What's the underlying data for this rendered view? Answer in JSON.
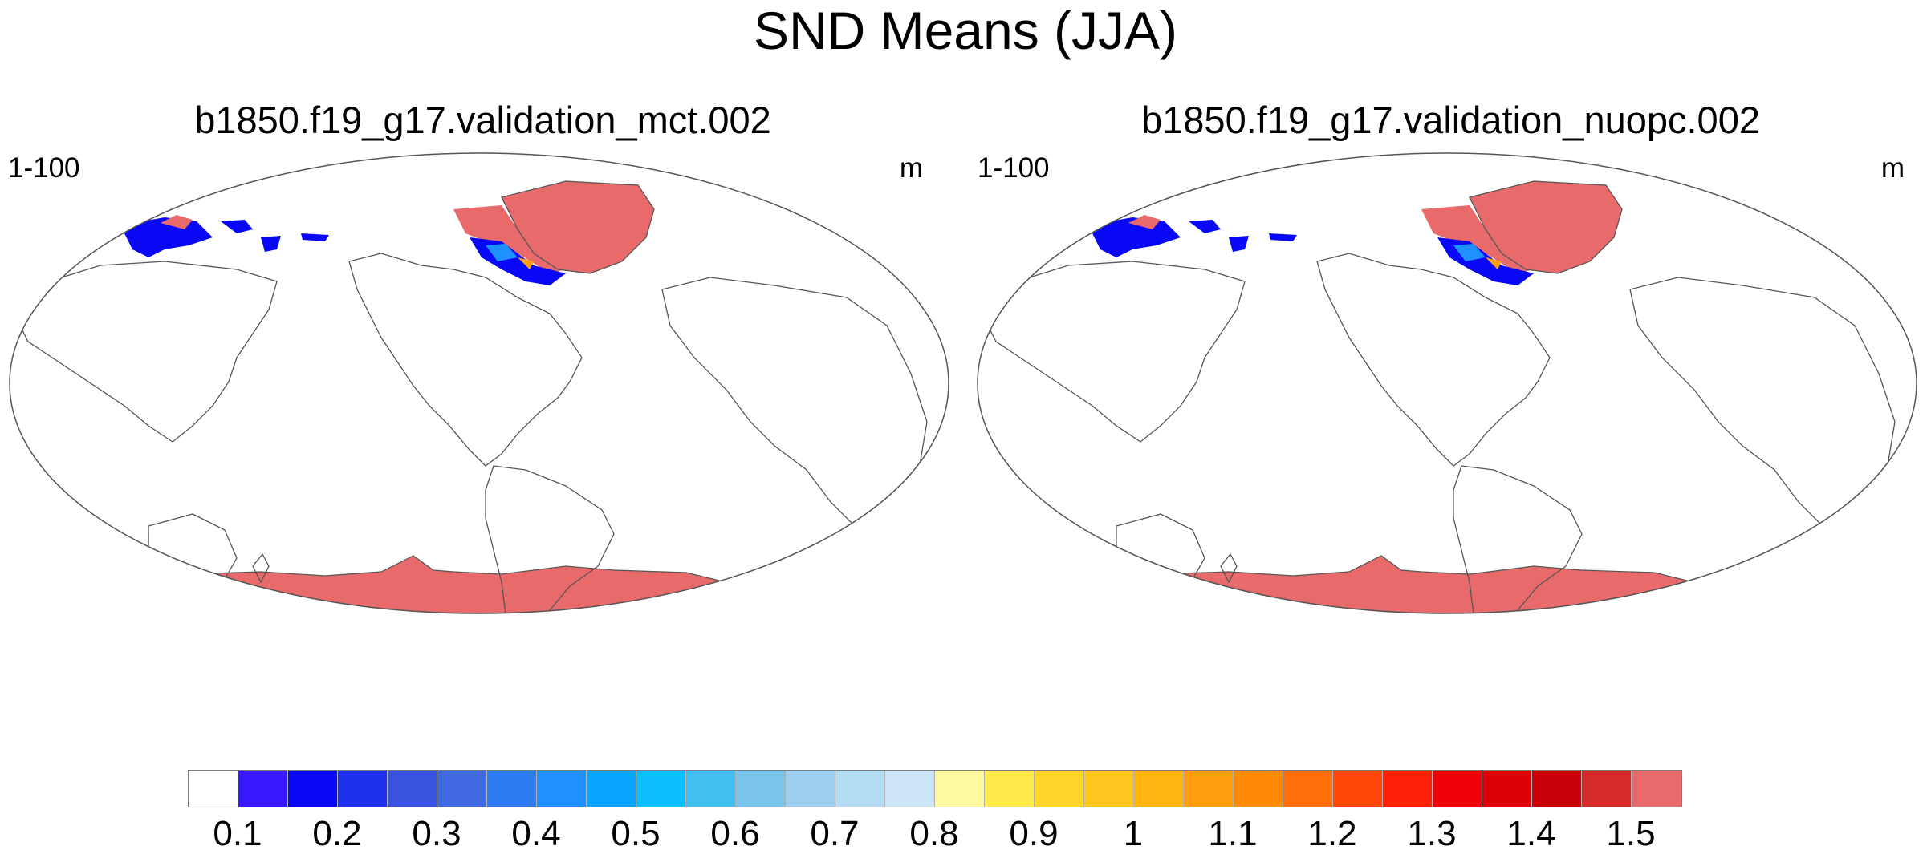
{
  "title": "SND Means (JJA)",
  "panels": [
    {
      "title": "b1850.f19_g17.validation_mct.002",
      "range": "1-100",
      "unit": "m"
    },
    {
      "title": "b1850.f19_g17.validation_nuopc.002",
      "range": "1-100",
      "unit": "m"
    }
  ],
  "colorbar": {
    "colors": [
      "#ffffff",
      "#3818ff",
      "#0808f6",
      "#1f30ea",
      "#3a52e0",
      "#4169e1",
      "#2d7cf0",
      "#1e90ff",
      "#0aa5ff",
      "#0cbfff",
      "#40c0f0",
      "#78c4ea",
      "#9ccff0",
      "#b4dcf4",
      "#cde6f7",
      "#fffaa0",
      "#ffe94c",
      "#ffd52c",
      "#ffc720",
      "#ffb610",
      "#ff9e10",
      "#ff8a08",
      "#ff6e08",
      "#ff4808",
      "#ff2008",
      "#f00008",
      "#dd0008",
      "#c80008",
      "#d42a2a",
      "#e86a6a"
    ],
    "labels": [
      "0.1",
      "0.2",
      "0.3",
      "0.4",
      "0.5",
      "0.6",
      "0.7",
      "0.8",
      "0.9",
      "1",
      "1.1",
      "1.2",
      "1.3",
      "1.4",
      "1.5"
    ]
  },
  "snow_colors": {
    "deep": "#e86a6a",
    "blue": "#0808f6",
    "mid": "#1e90ff",
    "orange": "#ff9e10"
  }
}
